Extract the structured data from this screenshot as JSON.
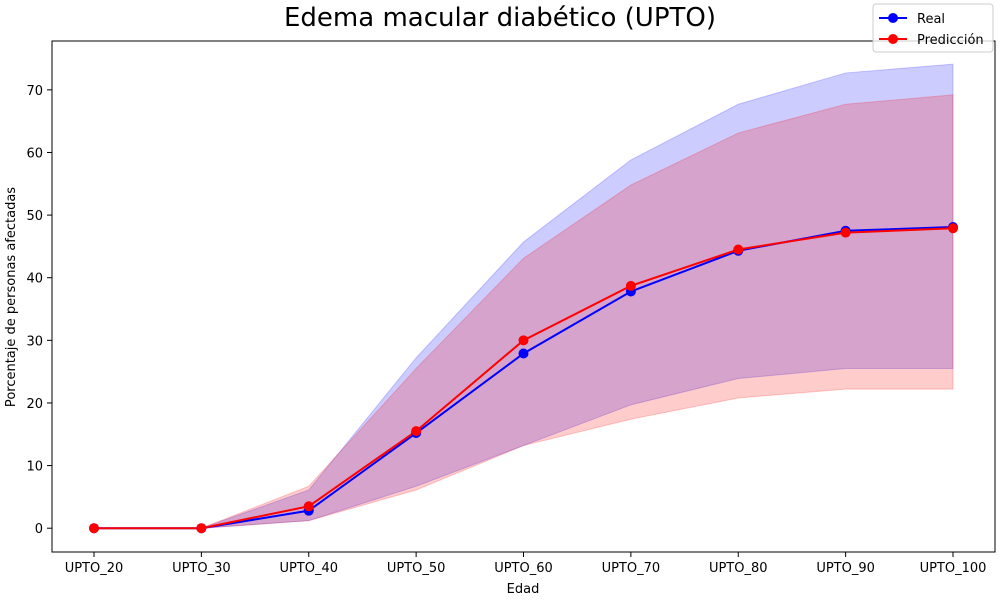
{
  "chart_data": {
    "type": "line",
    "title": "Edema macular diabético (UPTO)",
    "xlabel": "Edad",
    "ylabel": "Porcentaje de personas afectadas",
    "categories": [
      "UPTO_20",
      "UPTO_30",
      "UPTO_40",
      "UPTO_50",
      "UPTO_60",
      "UPTO_70",
      "UPTO_80",
      "UPTO_90",
      "UPTO_100"
    ],
    "ylim": [
      -3.8,
      77.8
    ],
    "yticks": [
      0,
      10,
      20,
      30,
      40,
      50,
      60,
      70
    ],
    "grid": false,
    "legend_position": "top-right",
    "series": [
      {
        "name": "Real",
        "color": "#0000ff",
        "values": [
          0.0,
          0.0,
          2.8,
          15.2,
          27.9,
          37.8,
          44.3,
          47.5,
          48.1
        ],
        "band_lower": [
          0.0,
          0.0,
          1.2,
          6.7,
          13.2,
          19.7,
          23.9,
          25.5,
          25.5
        ],
        "band_upper": [
          0.0,
          0.0,
          6.1,
          27.2,
          45.7,
          58.8,
          67.7,
          72.7,
          74.1
        ]
      },
      {
        "name": "Predicción",
        "color": "#ff0000",
        "values": [
          0.0,
          0.0,
          3.5,
          15.5,
          30.0,
          38.7,
          44.5,
          47.2,
          47.9
        ],
        "band_lower": [
          0.0,
          0.0,
          1.2,
          6.1,
          13.2,
          17.4,
          20.8,
          22.2,
          22.2
        ],
        "band_upper": [
          0.0,
          0.0,
          6.7,
          25.5,
          43.1,
          54.8,
          63.1,
          67.7,
          69.2
        ]
      }
    ]
  }
}
